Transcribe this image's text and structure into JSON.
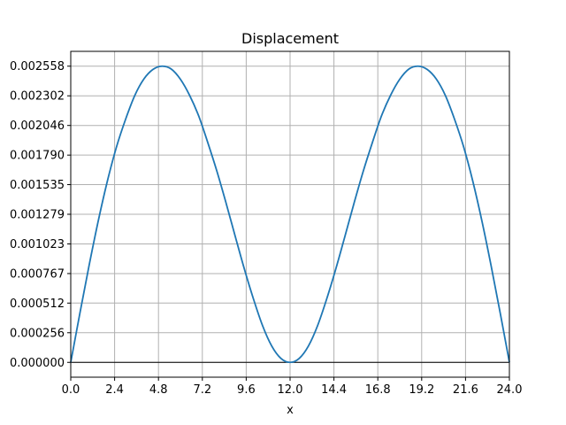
{
  "chart_data": {
    "type": "line",
    "title": "Displacement",
    "xlabel": "x",
    "ylabel": "",
    "xlim": [
      0.0,
      24.0
    ],
    "ylim": [
      -0.000128,
      0.002686
    ],
    "grid": true,
    "x_ticks": [
      "0.0",
      "2.4",
      "4.8",
      "7.2",
      "9.6",
      "12.0",
      "14.4",
      "16.8",
      "19.2",
      "21.6",
      "24.0"
    ],
    "y_ticks": [
      "0.000000",
      "0.000256",
      "0.000512",
      "0.000767",
      "0.001023",
      "0.001279",
      "0.001535",
      "0.001790",
      "0.002046",
      "0.002302",
      "0.002558"
    ],
    "series": [
      {
        "color": "#1f77b4",
        "x": [
          0,
          0.5,
          1,
          1.5,
          2,
          2.5,
          3,
          3.5,
          4,
          4.5,
          5,
          5.5,
          6,
          6.5,
          7,
          7.5,
          8,
          8.5,
          9,
          9.5,
          10,
          10.5,
          11,
          11.5,
          12,
          12.5,
          13,
          13.5,
          14,
          14.5,
          15,
          15.5,
          16,
          16.5,
          17,
          17.5,
          18,
          18.5,
          19,
          19.5,
          20,
          20.5,
          21,
          21.5,
          22,
          22.5,
          23,
          23.5,
          24
        ],
        "y": [
          0.0,
          0.000424,
          0.000834,
          0.001218,
          0.001563,
          0.001859,
          0.002099,
          0.002304,
          0.002447,
          0.00253,
          0.002558,
          0.002533,
          0.002445,
          0.002307,
          0.002128,
          0.001897,
          0.001649,
          0.001375,
          0.001088,
          0.000806,
          0.000546,
          0.000315,
          0.00014,
          3.4e-05,
          0.0,
          3.4e-05,
          0.00014,
          0.000315,
          0.000546,
          0.000806,
          0.001088,
          0.001375,
          0.001649,
          0.001897,
          0.002128,
          0.002307,
          0.002445,
          0.002533,
          0.002558,
          0.00253,
          0.002447,
          0.002304,
          0.002099,
          0.001859,
          0.001563,
          0.001218,
          0.000834,
          0.000424,
          0.0
        ]
      }
    ],
    "zero_line": true
  }
}
